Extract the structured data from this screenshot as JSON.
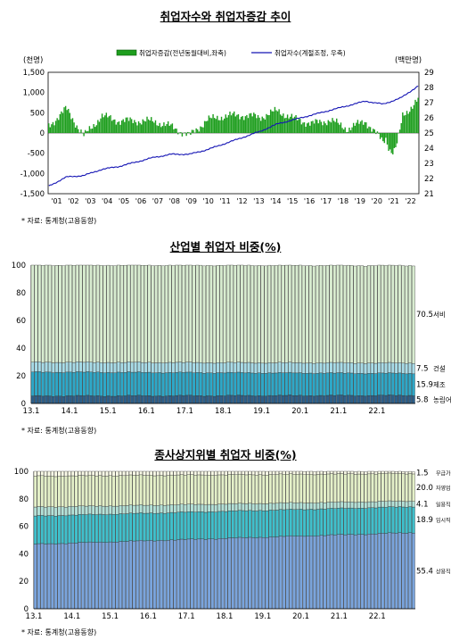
{
  "chart_data": [
    {
      "type": "bar+line",
      "title": "취업자수와 취업자증감 추이",
      "left_unit": "(천명)",
      "right_unit": "(백만명)",
      "legend": {
        "bar": "취업자증감(전년동월대비,좌축)",
        "line": "취업자수(계절조정, 우축)"
      },
      "left_ylim": [
        -1500,
        1500
      ],
      "left_ticks": [
        "1,500",
        "1,000",
        "500",
        "0",
        "-500",
        "-1,000",
        "-1,500"
      ],
      "right_ylim": [
        21,
        29
      ],
      "right_ticks": [
        "29",
        "28",
        "27",
        "26",
        "25",
        "24",
        "23",
        "22",
        "21"
      ],
      "x_ticks": [
        "'01",
        "'02",
        "'03",
        "'04",
        "'05",
        "'06",
        "'07",
        "'08",
        "'09",
        "'10",
        "'11",
        "'12",
        "'13",
        "'14",
        "'15",
        "'16",
        "'17",
        "'18",
        "'19",
        "'20",
        "'21",
        "'22"
      ],
      "bar_series_yearly_approx": [
        170,
        600,
        -80,
        420,
        300,
        300,
        290,
        150,
        -70,
        320,
        420,
        440,
        390,
        550,
        340,
        230,
        320,
        100,
        300,
        -220,
        370,
        820
      ],
      "line_series_yearly_approx": [
        21.5,
        22.1,
        22.2,
        22.6,
        22.8,
        23.1,
        23.4,
        23.6,
        23.6,
        23.9,
        24.3,
        24.7,
        25.1,
        25.6,
        25.9,
        26.2,
        26.5,
        26.8,
        27.1,
        26.9,
        27.3,
        28.1
      ],
      "colors": {
        "bar": "#1e9e1e",
        "line": "#1414b4"
      },
      "source_note": "* 자료: 통계청(고용동향)"
    },
    {
      "type": "stacked-bar",
      "title": "산업별 취업자 비중(%)",
      "ylim": [
        0,
        100
      ],
      "y_ticks": [
        "100",
        "80",
        "60",
        "40",
        "20",
        "0"
      ],
      "x_ticks": [
        "13.1",
        "14.1",
        "15.1",
        "16.1",
        "17.1",
        "18.1",
        "19.1",
        "20.1",
        "21.1",
        "22.1"
      ],
      "series": [
        {
          "name": "농림어",
          "value_label": "5.8",
          "color": "#2c5f8a",
          "start": 5.4,
          "end": 5.8
        },
        {
          "name": "제조",
          "value_label": "15.9",
          "color": "#2ea8c8",
          "start": 17.3,
          "end": 15.9
        },
        {
          "name": "건설",
          "value_label": "7.5",
          "color": "#a8dce8",
          "start": 7.1,
          "end": 7.5
        },
        {
          "name": "서비",
          "value_label": "70.5",
          "color": "#d8ecd0",
          "start": 70.2,
          "end": 70.5
        }
      ],
      "source_note": "* 자료: 통계청(고용동향)"
    },
    {
      "type": "stacked-bar",
      "title": "종사상지위별 취업자 비중(%)",
      "ylim": [
        0,
        100
      ],
      "y_ticks": [
        "100",
        "80",
        "60",
        "40",
        "20",
        "0"
      ],
      "x_ticks": [
        "13.1",
        "14.1",
        "15.1",
        "16.1",
        "17.1",
        "18.1",
        "19.1",
        "20.1",
        "21.1",
        "22.1"
      ],
      "series": [
        {
          "name": "상용직",
          "value_label": "55.4",
          "color": "#7aa4dc",
          "start": 47.0,
          "end": 55.4
        },
        {
          "name": "임시직",
          "value_label": "18.9",
          "color": "#40c0cc",
          "start": 20.5,
          "end": 18.9
        },
        {
          "name": "일용직",
          "value_label": "4.1",
          "color": "#b4e2d8",
          "start": 6.5,
          "end": 4.1
        },
        {
          "name": "자영업",
          "value_label": "20.0",
          "color": "#e4f0c8",
          "start": 22.5,
          "end": 20.0
        },
        {
          "name": "무급가족종사자",
          "value_label": "1.5",
          "color": "#fbfbe8",
          "start": 4.5,
          "end": 1.5
        }
      ],
      "source_note": "* 자료: 통계청(고용동향)"
    }
  ]
}
